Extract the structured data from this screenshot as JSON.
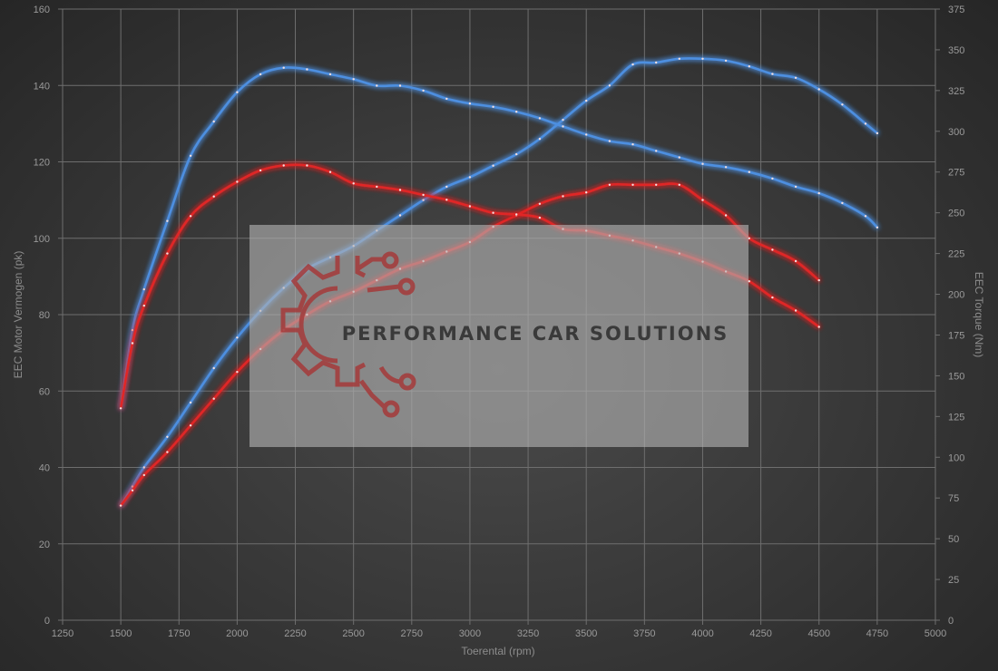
{
  "chart_data": {
    "type": "line",
    "xlabel": "Toerental (rpm)",
    "ylabel_left": "EEC Motor Vermogen (pk)",
    "ylabel_right": "EEC Torque (Nm)",
    "xlim": [
      1250,
      5000
    ],
    "ylim_left": [
      0,
      160
    ],
    "ylim_right": [
      0,
      375
    ],
    "x_ticks": [
      "1250",
      "1500",
      "1750",
      "2000",
      "2250",
      "2500",
      "2750",
      "3000",
      "3250",
      "3500",
      "3750",
      "4000",
      "4250",
      "4500",
      "4750",
      "5000"
    ],
    "y_left_ticks": [
      "0",
      "20",
      "40",
      "60",
      "80",
      "100",
      "120",
      "140",
      "160"
    ],
    "y_right_ticks": [
      "0",
      "25",
      "50",
      "75",
      "100",
      "125",
      "150",
      "175",
      "200",
      "225",
      "250",
      "275",
      "300",
      "325",
      "350",
      "375"
    ],
    "grid": true,
    "series": [
      {
        "axis": "left",
        "color": "#4d8fe0",
        "x": [
          1500,
          1550,
          1600,
          1700,
          1800,
          1900,
          2000,
          2100,
          2200,
          2300,
          2400,
          2500,
          2600,
          2700,
          2800,
          2900,
          3000,
          3100,
          3200,
          3300,
          3400,
          3500,
          3600,
          3700,
          3800,
          3900,
          4000,
          4100,
          4200,
          4300,
          4400,
          4500,
          4600,
          4700,
          4750
        ],
        "y": [
          30,
          35,
          40,
          48,
          57,
          66,
          74,
          81,
          87,
          92,
          95,
          98,
          102,
          106,
          110,
          113.5,
          116,
          119,
          122,
          126,
          131,
          136,
          140,
          145.5,
          146,
          147,
          147,
          146.5,
          145,
          143,
          142,
          139,
          135,
          130,
          127.5
        ]
      },
      {
        "axis": "left",
        "color": "#e02828",
        "x": [
          1500,
          1550,
          1600,
          1700,
          1800,
          1900,
          2000,
          2100,
          2200,
          2300,
          2400,
          2500,
          2600,
          2700,
          2800,
          2900,
          3000,
          3100,
          3200,
          3300,
          3400,
          3500,
          3600,
          3700,
          3800,
          3900,
          4000,
          4100,
          4200,
          4300,
          4400,
          4500
        ],
        "y": [
          30,
          34,
          38,
          44,
          51,
          58,
          65,
          71,
          76,
          80,
          83.5,
          86,
          89,
          92,
          94,
          96.5,
          99,
          103,
          106,
          109,
          111,
          112,
          114,
          114,
          114,
          114,
          110,
          106,
          100,
          97,
          94,
          89
        ]
      },
      {
        "axis": "right",
        "color": "#4d8fe0",
        "x": [
          1500,
          1550,
          1600,
          1700,
          1800,
          1900,
          2000,
          2100,
          2200,
          2300,
          2400,
          2500,
          2600,
          2700,
          2800,
          2900,
          3000,
          3100,
          3200,
          3300,
          3400,
          3500,
          3600,
          3700,
          3800,
          3900,
          4000,
          4100,
          4200,
          4300,
          4400,
          4500,
          4600,
          4700,
          4750
        ],
        "y": [
          130,
          178,
          203,
          245,
          285,
          306,
          324,
          335,
          339,
          338,
          335,
          332,
          328,
          328,
          325,
          320,
          317,
          315,
          312,
          308,
          303,
          298,
          294,
          292,
          288,
          284,
          280,
          278,
          275,
          271,
          266,
          262,
          256,
          248,
          241
        ]
      },
      {
        "axis": "right",
        "color": "#e02828",
        "x": [
          1500,
          1550,
          1600,
          1700,
          1800,
          1900,
          2000,
          2100,
          2200,
          2300,
          2400,
          2500,
          2600,
          2700,
          2800,
          2900,
          3000,
          3100,
          3200,
          3300,
          3400,
          3500,
          3600,
          3700,
          3800,
          3900,
          4000,
          4100,
          4200,
          4300,
          4400,
          4500
        ],
        "y": [
          130,
          170,
          193,
          225,
          248,
          260,
          269,
          276,
          279,
          279,
          275,
          268,
          266,
          264,
          261,
          258,
          254,
          250,
          249,
          247,
          240,
          239,
          236,
          233,
          229,
          225,
          220,
          214,
          208,
          198,
          190,
          180
        ]
      }
    ]
  },
  "watermark": {
    "text": "PERFORMANCE CAR SOLUTIONS"
  }
}
